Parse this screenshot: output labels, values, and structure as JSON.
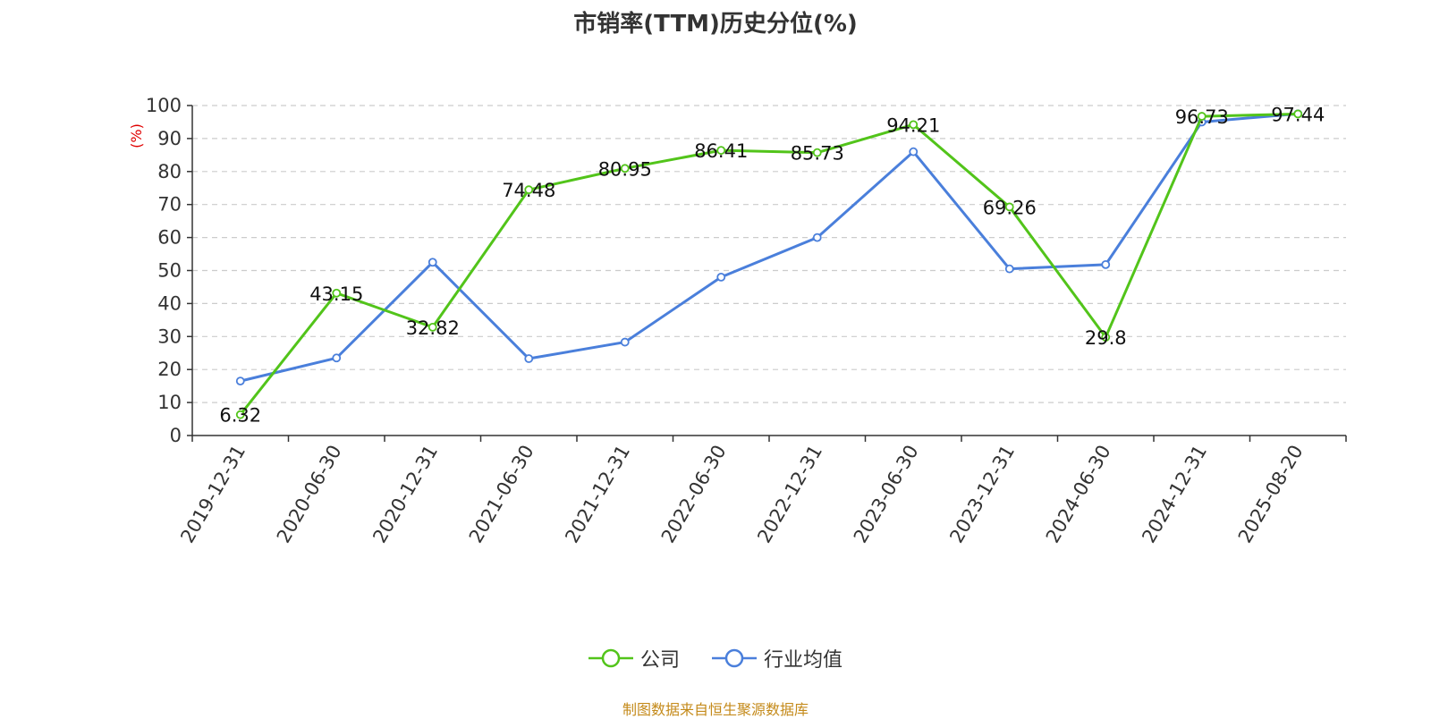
{
  "chart_data": {
    "type": "line",
    "title": "市销率(TTM)历史分位(%)",
    "ylabel": "(%)",
    "ylim": [
      0,
      100
    ],
    "yticks": [
      0,
      10,
      20,
      30,
      40,
      50,
      60,
      70,
      80,
      90,
      100
    ],
    "categories": [
      "2019-12-31",
      "2020-06-30",
      "2020-12-31",
      "2021-06-30",
      "2021-12-31",
      "2022-06-30",
      "2022-12-31",
      "2023-06-30",
      "2023-12-31",
      "2024-06-30",
      "2024-12-31",
      "2025-08-20"
    ],
    "grid": true,
    "legend_position": "bottom-center",
    "series": [
      {
        "name": "公司",
        "color": "#52c41a",
        "labeled": true,
        "values": [
          6.32,
          43.15,
          32.82,
          74.48,
          80.95,
          86.41,
          85.73,
          94.21,
          69.26,
          29.8,
          96.73,
          97.44
        ]
      },
      {
        "name": "行业均值",
        "color": "#4a7fdb",
        "labeled": false,
        "values": [
          16.5,
          23.5,
          52.5,
          23.3,
          28.3,
          48.0,
          60.0,
          86.0,
          50.5,
          51.8,
          95.0,
          97.5
        ]
      }
    ]
  },
  "source": "制图数据来自恒生聚源数据库"
}
